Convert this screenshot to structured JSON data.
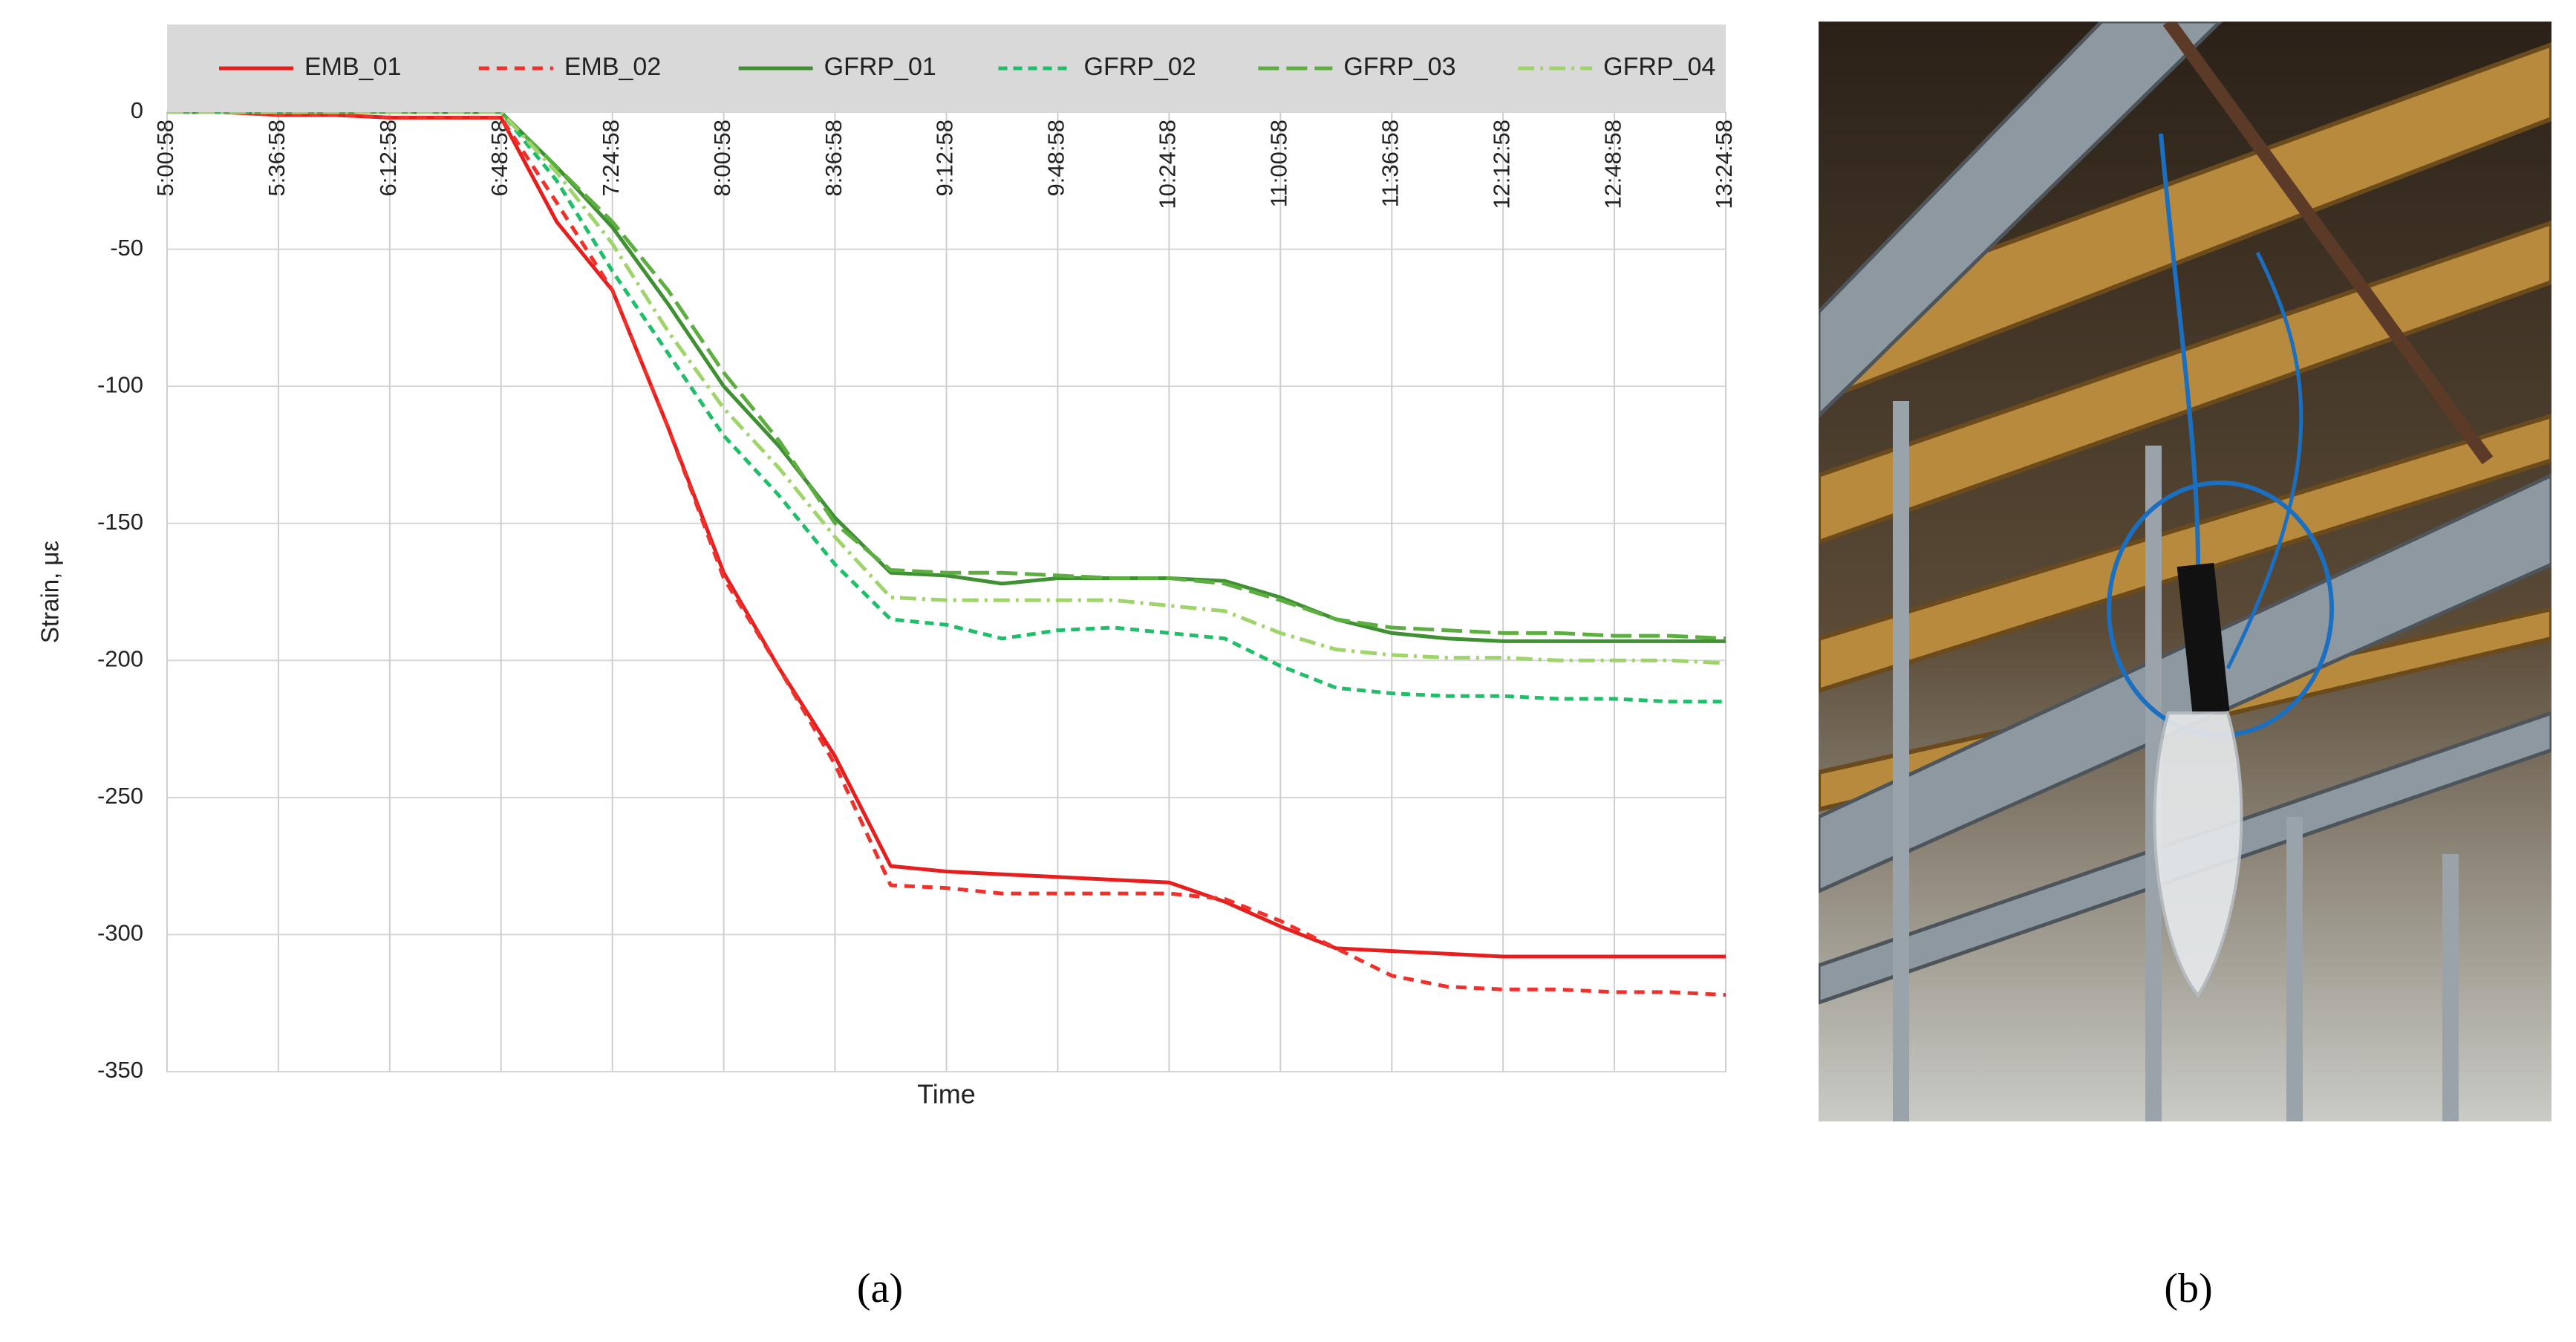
{
  "chart_data": {
    "type": "line",
    "x_label": "Time",
    "y_label": "Strain, με",
    "x": [
      "5:00:58",
      "5:18:58",
      "5:36:58",
      "5:54:58",
      "6:12:58",
      "6:30:58",
      "6:48:58",
      "7:06:58",
      "7:24:58",
      "7:42:58",
      "8:00:58",
      "8:18:58",
      "8:36:58",
      "8:54:58",
      "9:12:58",
      "9:30:58",
      "9:48:58",
      "10:06:58",
      "10:24:58",
      "10:42:58",
      "11:00:58",
      "11:18:58",
      "11:36:58",
      "11:54:58",
      "12:12:58",
      "12:30:58",
      "12:48:58",
      "13:06:58",
      "13:24:58"
    ],
    "xlim": [
      "5:00:58",
      "13:24:58"
    ],
    "xticks": [
      "5:00:58",
      "5:36:58",
      "6:12:58",
      "6:48:58",
      "7:24:58",
      "8:00:58",
      "8:36:58",
      "9:12:58",
      "9:48:58",
      "10:24:58",
      "11:00:58",
      "11:36:58",
      "12:12:58",
      "12:48:58",
      "13:24:58"
    ],
    "ylim": [
      -350,
      0
    ],
    "yticks": [
      0,
      -50,
      -100,
      -150,
      -200,
      -250,
      -300,
      -350
    ],
    "grid": true,
    "series": [
      {
        "name": "EMB_01",
        "color": "#e61e1e",
        "dash": "none",
        "values": [
          0,
          0,
          -1,
          -1,
          -2,
          -2,
          -2,
          -40,
          -65,
          -115,
          -168,
          -203,
          -235,
          -275,
          -277,
          -278,
          -279,
          -280,
          -281,
          -288,
          -297,
          -305,
          -306,
          -307,
          -308,
          -308,
          -308,
          -308,
          -308
        ]
      },
      {
        "name": "EMB_02",
        "color": "#f0302a",
        "dash": "14,10",
        "values": [
          0,
          0,
          -1,
          -1,
          -2,
          -2,
          -2,
          -33,
          -65,
          -115,
          -170,
          -203,
          -238,
          -282,
          -283,
          -285,
          -285,
          -285,
          -285,
          -287,
          -295,
          -305,
          -315,
          -319,
          -320,
          -320,
          -321,
          -321,
          -322
        ]
      },
      {
        "name": "GFRP_01",
        "color": "#3f8f33",
        "dash": "none",
        "values": [
          0,
          0,
          0,
          0,
          0,
          0,
          0,
          -20,
          -42,
          -70,
          -100,
          -122,
          -148,
          -168,
          -169,
          -172,
          -170,
          -170,
          -170,
          -171,
          -177,
          -185,
          -190,
          -192,
          -193,
          -193,
          -193,
          -193,
          -193
        ]
      },
      {
        "name": "GFRP_02",
        "color": "#1fbf6a",
        "dash": "12,8",
        "values": [
          0,
          0,
          0,
          0,
          0,
          0,
          0,
          -25,
          -58,
          -88,
          -118,
          -140,
          -165,
          -185,
          -187,
          -192,
          -189,
          -188,
          -190,
          -192,
          -202,
          -210,
          -212,
          -213,
          -213,
          -214,
          -214,
          -215,
          -215
        ]
      },
      {
        "name": "GFRP_03",
        "color": "#5cae40",
        "dash": "28,10",
        "values": [
          0,
          0,
          0,
          0,
          0,
          0,
          0,
          -20,
          -40,
          -65,
          -95,
          -120,
          -150,
          -167,
          -168,
          -168,
          -169,
          -170,
          -170,
          -172,
          -178,
          -185,
          -188,
          -189,
          -190,
          -190,
          -191,
          -191,
          -192
        ]
      },
      {
        "name": "GFRP_04",
        "color": "#9fd46a",
        "dash": "22,8,4,8",
        "values": [
          0,
          0,
          0,
          0,
          0,
          0,
          0,
          -22,
          -48,
          -80,
          -108,
          -130,
          -155,
          -177,
          -178,
          -178,
          -178,
          -178,
          -180,
          -182,
          -190,
          -196,
          -198,
          -199,
          -199,
          -200,
          -200,
          -200,
          -201
        ]
      }
    ]
  },
  "captions": [
    "(a)",
    "(b)"
  ]
}
